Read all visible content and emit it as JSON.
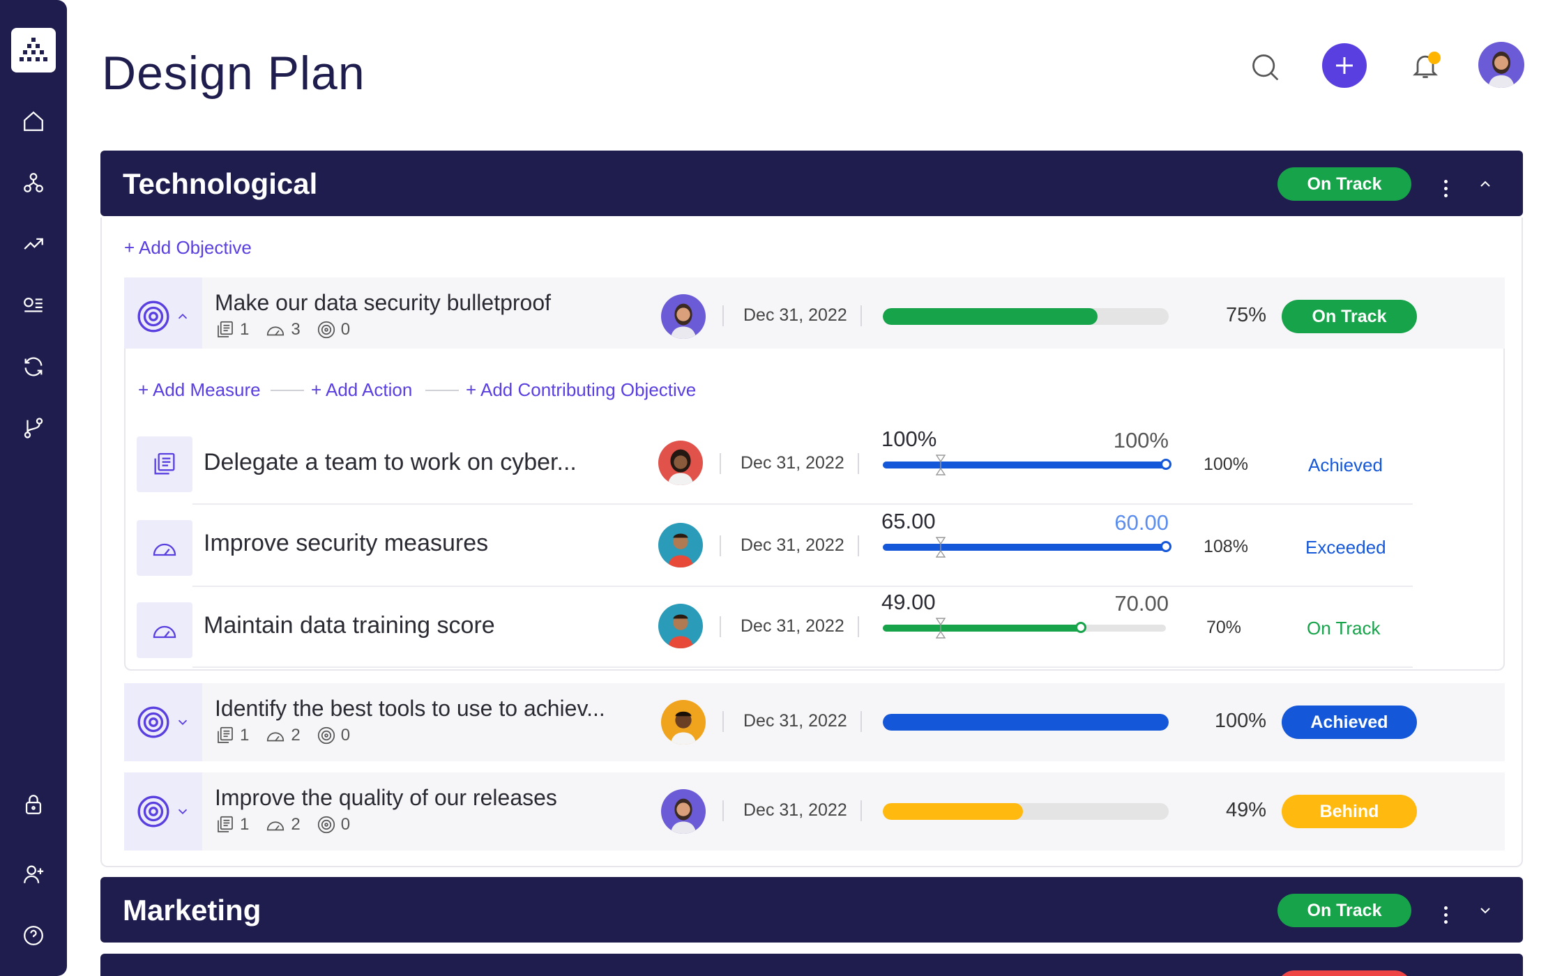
{
  "page": {
    "title": "Design Plan"
  },
  "sidebar": {
    "items": [
      {
        "icon": "home-icon"
      },
      {
        "icon": "hierarchy-icon"
      },
      {
        "icon": "trending-up-icon"
      },
      {
        "icon": "list-icon"
      },
      {
        "icon": "refresh-icon"
      },
      {
        "icon": "branch-icon"
      },
      {
        "icon": "lock-icon"
      },
      {
        "icon": "add-user-icon"
      },
      {
        "icon": "help-icon"
      }
    ]
  },
  "header": {
    "actions": [
      "search-icon",
      "plus-icon",
      "bell-icon",
      "avatar"
    ]
  },
  "groups": [
    {
      "title": "Technological",
      "status": "On Track",
      "add_objective": "+ Add Objective",
      "objectives": [
        {
          "title": "Make our data security bulletproof",
          "meta": {
            "docs": "1",
            "measures": "3",
            "targets": "0"
          },
          "date": "Dec 31, 2022",
          "progress": 0.75,
          "percent": "75%",
          "status": "On Track",
          "status_color": "#16a34a",
          "expanded": true,
          "links": [
            "+ Add Measure",
            "+ Add Action",
            "+ Add Contributing Objective"
          ],
          "measures": [
            {
              "title": "Delegate a team to work on cyber...",
              "date": "Dec 31, 2022",
              "current": "100%",
              "target": "100%",
              "progress": 1.0,
              "percent": "100%",
              "status": "Achieved",
              "color": "#1457d9"
            },
            {
              "title": "Improve security measures",
              "date": "Dec 31, 2022",
              "current": "65.00",
              "target": "60.00",
              "progress": 1.0,
              "percent": "108%",
              "status": "Exceeded",
              "color": "#1457d9",
              "target_color": "#5b8def"
            },
            {
              "title": "Maintain data training score",
              "date": "Dec 31, 2022",
              "current": "49.00",
              "target": "70.00",
              "progress": 0.7,
              "percent": "70%",
              "status": "On Track",
              "color": "#16a34a"
            }
          ]
        },
        {
          "title": "Identify the best tools to use to achiev...",
          "meta": {
            "docs": "1",
            "measures": "2",
            "targets": "0"
          },
          "date": "Dec 31, 2022",
          "progress": 1.0,
          "percent": "100%",
          "status": "Achieved",
          "status_color": "#1457d9"
        },
        {
          "title": "Improve the quality of our releases",
          "meta": {
            "docs": "1",
            "measures": "2",
            "targets": "0"
          },
          "date": "Dec 31, 2022",
          "progress": 0.49,
          "percent": "49%",
          "status": "Behind",
          "status_color": "#ffb90f"
        }
      ]
    },
    {
      "title": "Marketing",
      "status": "On Track"
    }
  ]
}
